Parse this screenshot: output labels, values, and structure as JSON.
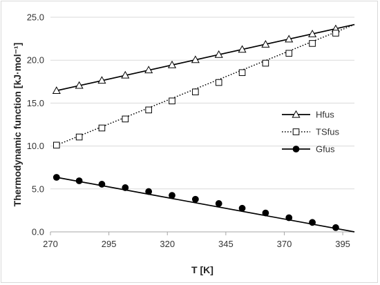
{
  "chart_data": {
    "type": "line",
    "xlabel": "T [K]",
    "ylabel": "Thermodynamic function [kJ·mol⁻¹]",
    "xlim": [
      270,
      400
    ],
    "ylim": [
      0,
      25
    ],
    "xticks": [
      270,
      295,
      320,
      345,
      370,
      395
    ],
    "yticks": [
      0,
      5,
      10,
      15,
      20,
      25
    ],
    "xtick_labels": [
      "270",
      "295",
      "320",
      "345",
      "370",
      "395"
    ],
    "ytick_labels": [
      "0.0",
      "5.0",
      "10.0",
      "15.0",
      "20.0",
      "25.0"
    ],
    "grid": "horizontal",
    "legend_position": "right",
    "series": [
      {
        "name": "Hfus",
        "line_style": "solid",
        "marker": "triangle-open",
        "color": "#000000",
        "x": [
          272.6,
          282.3,
          292.0,
          302.0,
          312.0,
          322.0,
          332.0,
          342.0,
          352.0,
          362.0,
          372.0,
          382.0,
          392.0
        ],
        "y": [
          16.45,
          17.05,
          17.65,
          18.25,
          18.85,
          19.45,
          20.05,
          20.65,
          21.25,
          21.85,
          22.45,
          23.05,
          23.65
        ],
        "line_x": [
          272.6,
          400
        ],
        "line_y": [
          16.45,
          24.15
        ]
      },
      {
        "name": "TSfus",
        "line_style": "dotted",
        "marker": "square-open",
        "color": "#000000",
        "x": [
          272.6,
          282.3,
          292.0,
          302.0,
          312.0,
          322.0,
          332.0,
          342.0,
          352.0,
          362.0,
          372.0,
          382.0,
          392.0
        ],
        "y": [
          10.1,
          11.05,
          12.1,
          13.15,
          14.2,
          15.25,
          16.3,
          17.4,
          18.55,
          19.65,
          20.8,
          21.95,
          23.15
        ],
        "line_x": [
          272.6,
          400
        ],
        "line_y": [
          10.1,
          24.15
        ]
      },
      {
        "name": "Gfus",
        "line_style": "solid",
        "marker": "circle-filled",
        "color": "#000000",
        "x": [
          272.6,
          282.3,
          292.0,
          302.0,
          312.0,
          322.0,
          332.0,
          342.0,
          352.0,
          362.0,
          372.0,
          382.0,
          392.0
        ],
        "y": [
          6.35,
          5.95,
          5.55,
          5.15,
          4.7,
          4.25,
          3.8,
          3.3,
          2.75,
          2.2,
          1.65,
          1.1,
          0.5
        ],
        "line_x": [
          272.6,
          400
        ],
        "line_y": [
          6.35,
          0.0
        ]
      }
    ]
  }
}
